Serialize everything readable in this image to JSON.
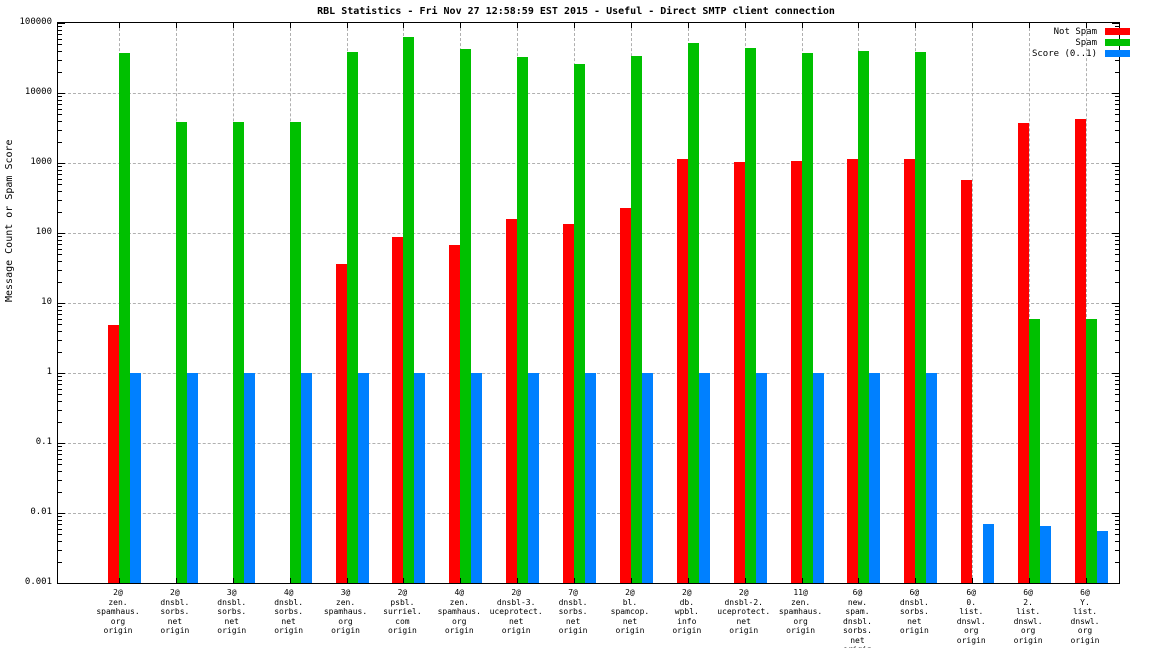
{
  "chart": {
    "title": "RBL Statistics - Fri Nov 27 12:58:59 EST 2015 - Useful - Direct SMTP client connection",
    "ylabel": "Message Count or Spam Score"
  },
  "chart_data": {
    "type": "bar",
    "title": "RBL Statistics - Fri Nov 27 12:58:59 EST 2015 - Useful - Direct SMTP client connection",
    "ylabel": "Message Count or Spam Score",
    "xlabel": "",
    "yscale": "log",
    "ylim": [
      0.001,
      100000
    ],
    "y_tick_labels": [
      "100000",
      "10000",
      "1000",
      "100",
      "10",
      "1",
      "0.1",
      "0.01",
      "0.001"
    ],
    "grid": true,
    "legend_position": "top-right",
    "categories": [
      [
        "2@",
        "zen.",
        "spamhaus.",
        "org",
        "origin"
      ],
      [
        "2@",
        "dnsbl.",
        "sorbs.",
        "net",
        "origin"
      ],
      [
        "3@",
        "dnsbl.",
        "sorbs.",
        "net",
        "origin"
      ],
      [
        "4@",
        "dnsbl.",
        "sorbs.",
        "net",
        "origin"
      ],
      [
        "3@",
        "zen.",
        "spamhaus.",
        "org",
        "origin"
      ],
      [
        "2@",
        "psbl.",
        "surriel.",
        "com",
        "origin"
      ],
      [
        "4@",
        "zen.",
        "spamhaus.",
        "org",
        "origin"
      ],
      [
        "2@",
        "dnsbl-3.",
        "uceprotect.",
        "net",
        "origin"
      ],
      [
        "7@",
        "dnsbl.",
        "sorbs.",
        "net",
        "origin"
      ],
      [
        "2@",
        "bl.",
        "spamcop.",
        "net",
        "origin"
      ],
      [
        "2@",
        "db.",
        "wpbl.",
        "info",
        "origin"
      ],
      [
        "2@",
        "dnsbl-2.",
        "uceprotect.",
        "net",
        "origin"
      ],
      [
        "11@",
        "zen.",
        "spamhaus.",
        "org",
        "origin"
      ],
      [
        "6@",
        "new.",
        "spam.",
        "dnsbl.",
        "sorbs.",
        "net",
        "origin"
      ],
      [
        "6@",
        "dnsbl.",
        "sorbs.",
        "net",
        "origin"
      ],
      [
        "6@",
        "0.",
        "list.",
        "dnswl.",
        "org",
        "origin"
      ],
      [
        "6@",
        "2.",
        "list.",
        "dnswl.",
        "org",
        "origin"
      ],
      [
        "6@",
        "Y.",
        "list.",
        "dnswl.",
        "org",
        "origin"
      ]
    ],
    "series": [
      {
        "name": "Not Spam",
        "color": "#ff0000",
        "values": [
          4.8,
          null,
          null,
          null,
          36,
          88,
          67,
          160,
          134,
          230,
          1140,
          1030,
          1070,
          1130,
          1150,
          580,
          3700,
          4300
        ]
      },
      {
        "name": "Spam",
        "color": "#00c000",
        "values": [
          37000,
          3800,
          3800,
          3800,
          39000,
          63000,
          42000,
          33000,
          26000,
          34000,
          52000,
          44000,
          37000,
          40000,
          39000,
          null,
          6,
          6
        ]
      },
      {
        "name": "Score (0..1)",
        "color": "#0080ff",
        "values": [
          1,
          1,
          1,
          1,
          1,
          1,
          1,
          1,
          1,
          1,
          1,
          1,
          1,
          1,
          1,
          0.007,
          0.0065,
          0.0055
        ]
      }
    ]
  }
}
